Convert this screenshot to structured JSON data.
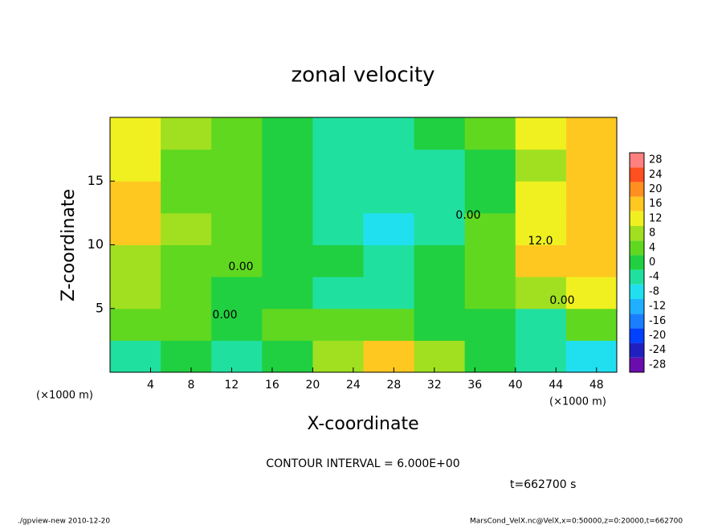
{
  "chart_data": {
    "type": "contourf",
    "title": "zonal velocity",
    "xlabel": "X-coordinate",
    "ylabel": "Z-coordinate",
    "xunit": "(×1000 m)",
    "yunit": "(×1000 m)",
    "xlim": [
      0,
      50
    ],
    "ylim": [
      0,
      20
    ],
    "xticks": [
      4,
      8,
      12,
      16,
      20,
      24,
      28,
      32,
      36,
      40,
      44,
      48
    ],
    "yticks": [
      5,
      10,
      15
    ],
    "x": [
      2.5,
      7.5,
      12.5,
      17.5,
      22.5,
      27.5,
      32.5,
      37.5,
      42.5,
      47.5
    ],
    "y": [
      1.25,
      3.75,
      6.25,
      8.75,
      11.25,
      13.75,
      16.25,
      18.75
    ],
    "z": [
      [
        -6,
        0,
        -4,
        -2,
        8,
        14,
        6,
        0,
        -4,
        -10
      ],
      [
        4,
        2,
        0,
        4,
        2,
        2,
        0,
        0,
        -4,
        2
      ],
      [
        6,
        2,
        0,
        -2,
        -4,
        -4,
        -2,
        2,
        8,
        10
      ],
      [
        8,
        4,
        2,
        0,
        -2,
        -6,
        -2,
        4,
        14,
        14
      ],
      [
        14,
        6,
        2,
        0,
        -4,
        -8,
        -4,
        2,
        12,
        16
      ],
      [
        14,
        4,
        2,
        0,
        -4,
        -6,
        -4,
        0,
        10,
        16
      ],
      [
        12,
        4,
        2,
        0,
        -4,
        -6,
        -4,
        0,
        8,
        14
      ],
      [
        12,
        6,
        4,
        0,
        -4,
        -6,
        -2,
        2,
        10,
        14
      ]
    ],
    "clim": [
      -30,
      30
    ],
    "colors": [
      "#6a0dad",
      "#2020c0",
      "#0040ff",
      "#1a7fff",
      "#20b0ff",
      "#20e0f0",
      "#20e0a0",
      "#20d040",
      "#60d820",
      "#a0e020",
      "#f0f020",
      "#ffc820",
      "#ff9020",
      "#ff5020",
      "#ff8080"
    ],
    "cticks": [
      -28,
      -24,
      -20,
      -16,
      -12,
      -8,
      -4,
      0,
      4,
      8,
      12,
      16,
      20,
      24,
      28
    ],
    "annotations": [
      "0.00",
      "0.00",
      "0.00",
      "0.00",
      "12.0"
    ],
    "contour_interval": "CONTOUR INTERVAL = 6.000E+00",
    "time": "t=662700 s",
    "footer_left": "./gpview-new  2010-12-20",
    "footer_right": "MarsCond_VelX.nc@VelX,x=0:50000,z=0:20000,t=662700"
  }
}
